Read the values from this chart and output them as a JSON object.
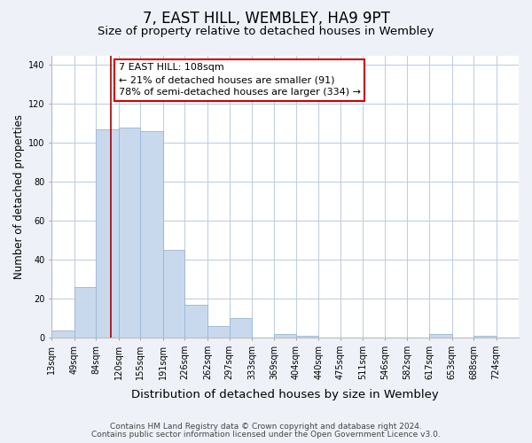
{
  "title": "7, EAST HILL, WEMBLEY, HA9 9PT",
  "subtitle": "Size of property relative to detached houses in Wembley",
  "xlabel": "Distribution of detached houses by size in Wembley",
  "ylabel": "Number of detached properties",
  "bar_color": "#c8d9ee",
  "bar_edge_color": "#9ab5d4",
  "vline_color": "#aa0000",
  "vline_x": 108,
  "annotation_title": "7 EAST HILL: 108sqm",
  "annotation_line1": "← 21% of detached houses are smaller (91)",
  "annotation_line2": "78% of semi-detached houses are larger (334) →",
  "annotation_box_facecolor": "#ffffff",
  "annotation_box_edgecolor": "#cc0000",
  "bins": [
    13,
    49,
    84,
    120,
    155,
    191,
    226,
    262,
    297,
    333,
    369,
    404,
    440,
    475,
    511,
    546,
    582,
    617,
    653,
    688,
    724
  ],
  "counts": [
    4,
    26,
    107,
    108,
    106,
    45,
    17,
    6,
    10,
    0,
    2,
    1,
    0,
    0,
    0,
    0,
    0,
    2,
    0,
    1,
    0
  ],
  "ylim": [
    0,
    145
  ],
  "yticks": [
    0,
    20,
    40,
    60,
    80,
    100,
    120,
    140
  ],
  "footnote1": "Contains HM Land Registry data © Crown copyright and database right 2024.",
  "footnote2": "Contains public sector information licensed under the Open Government Licence v3.0.",
  "bg_color": "#eef2f8",
  "plot_bg_color": "#ffffff",
  "grid_color": "#c0cfe0",
  "title_fontsize": 12,
  "subtitle_fontsize": 9.5,
  "xlabel_fontsize": 9.5,
  "ylabel_fontsize": 8.5,
  "tick_fontsize": 7,
  "footnote_fontsize": 6.5,
  "annotation_fontsize": 8
}
